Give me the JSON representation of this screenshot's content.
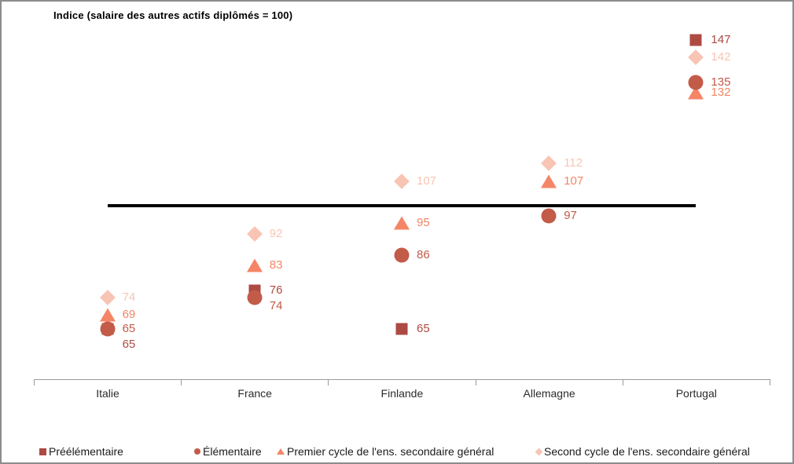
{
  "title": "Indice (salaire des autres actifs diplômés = 100)",
  "chart_data": {
    "type": "scatter",
    "title": "Indice (salaire des autres actifs diplômés = 100)",
    "categories": [
      "Italie",
      "France",
      "Finlande",
      "Allemagne",
      "Portugal"
    ],
    "series": [
      {
        "name": "Préélémentaire",
        "marker": "square",
        "color": "#AD4A43",
        "values": [
          65,
          76,
          65,
          null,
          147
        ]
      },
      {
        "name": "Élémentaire",
        "marker": "circle",
        "color": "#C35B49",
        "values": [
          65,
          74,
          86,
          97,
          135
        ]
      },
      {
        "name": "Premier cycle de l'ens. secondaire général",
        "marker": "triangle",
        "color": "#F48566",
        "values": [
          69,
          83,
          95,
          107,
          132
        ]
      },
      {
        "name": "Second cycle de l'ens. secondaire général",
        "marker": "diamond",
        "color": "#F8C4B3",
        "values": [
          74,
          92,
          107,
          112,
          142
        ]
      }
    ],
    "reference_line": {
      "value": 100,
      "color": "#000000"
    },
    "value_labels_shown": true,
    "legend_position": "bottom",
    "grid": false,
    "ylim_implied": [
      50,
      158
    ]
  }
}
